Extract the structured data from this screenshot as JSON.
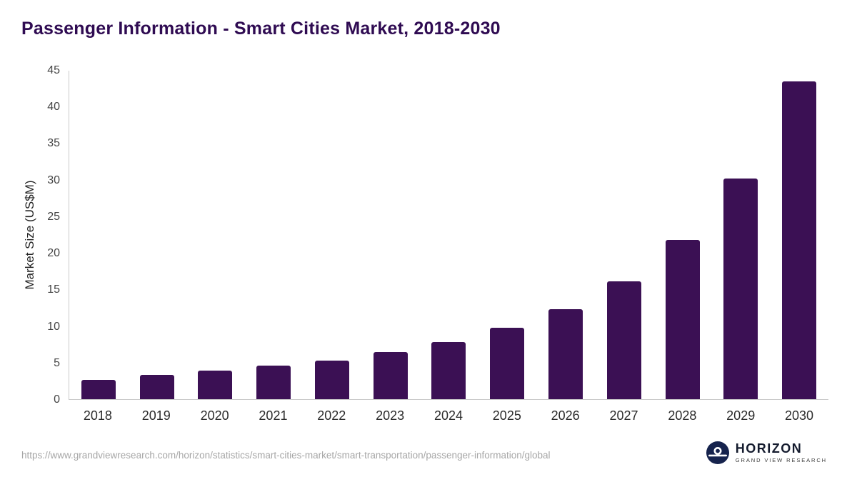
{
  "chart_data": {
    "type": "bar",
    "title": "Passenger Information - Smart Cities Market, 2018-2030",
    "categories": [
      "2018",
      "2019",
      "2020",
      "2021",
      "2022",
      "2023",
      "2024",
      "2025",
      "2026",
      "2027",
      "2028",
      "2029",
      "2030"
    ],
    "values": [
      2.6,
      3.3,
      3.9,
      4.6,
      5.3,
      6.5,
      7.8,
      9.8,
      12.3,
      16.1,
      21.8,
      30.2,
      43.5
    ],
    "xlabel": "",
    "ylabel": "Market Size (US$M)",
    "ylim": [
      0,
      45
    ],
    "yticks": [
      0,
      5,
      10,
      15,
      20,
      25,
      30,
      35,
      40,
      45
    ],
    "grid": false,
    "legend": false,
    "bar_color": "#3b1054"
  },
  "colors": {
    "bar": "#3b1054",
    "title": "#2f0b52",
    "axis_line": "#c9c9c9",
    "logo_navy": "#16234d"
  },
  "footer": {
    "source_url": "https://www.grandviewresearch.com/horizon/statistics/smart-cities-market/smart-transportation/passenger-information/global",
    "logo": {
      "brand": "HORIZON",
      "sub": "GRAND VIEW RESEARCH"
    }
  }
}
